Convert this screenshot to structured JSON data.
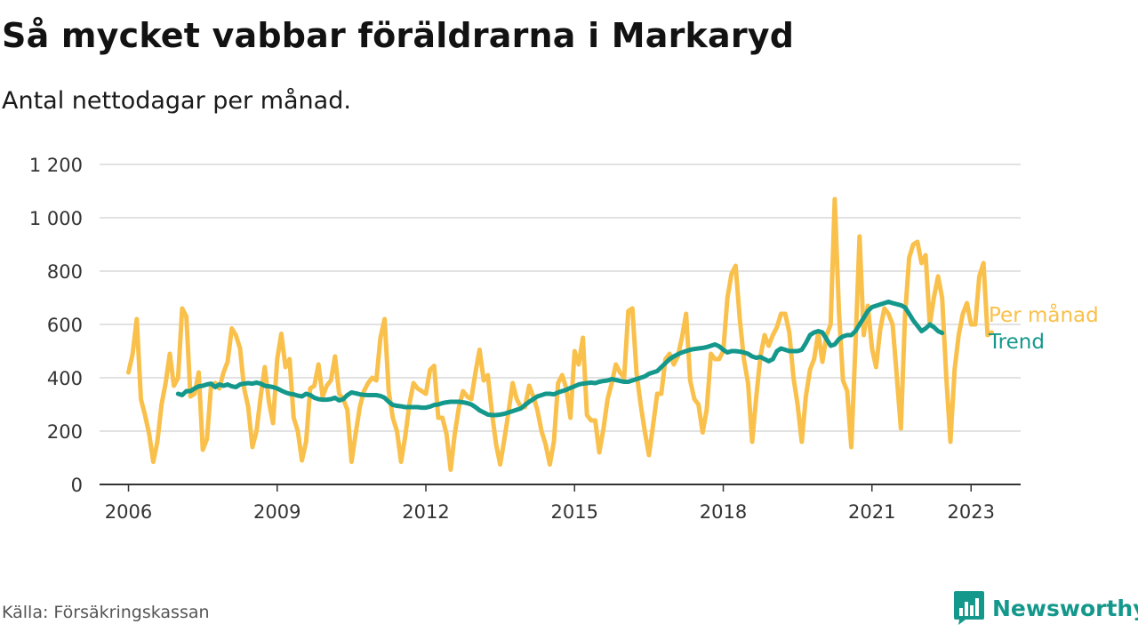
{
  "title": "Så mycket vabbar föräldrarna i Markaryd",
  "subtitle": "Antal nettodagar per månad.",
  "source": "Källa: Försäkringskassan",
  "brand": {
    "name": "Newsworthy",
    "icon": "bar-chart-speech-bubble-icon"
  },
  "colors": {
    "per_month": "#f9c04b",
    "trend": "#14988c",
    "grid": "#d9d9d9",
    "axis": "#333333",
    "brand": "#14988c"
  },
  "chart_data": {
    "type": "line",
    "title": "Så mycket vabbar föräldrarna i Markaryd",
    "subtitle": "Antal nettodagar per månad.",
    "xlabel": "",
    "ylabel": "",
    "ylim": [
      0,
      1200
    ],
    "xlim": [
      "2005-06",
      "2024-01"
    ],
    "yticks": [
      0,
      200,
      400,
      600,
      800,
      1000,
      1200
    ],
    "ytick_labels": [
      "0",
      "200",
      "400",
      "600",
      "800",
      "1 000",
      "1 200"
    ],
    "xticks": [
      "2006-01",
      "2009-01",
      "2012-01",
      "2015-01",
      "2018-01",
      "2021-01",
      "2023-01"
    ],
    "xtick_labels": [
      "2006",
      "2009",
      "2012",
      "2015",
      "2018",
      "2021",
      "2023"
    ],
    "grid": true,
    "legend": "direct labels at right end of lines",
    "series": [
      {
        "name": "Per månad",
        "start": "2006-01",
        "values": [
          420,
          490,
          620,
          320,
          260,
          190,
          85,
          160,
          300,
          380,
          490,
          370,
          400,
          660,
          630,
          330,
          340,
          420,
          130,
          170,
          370,
          380,
          360,
          420,
          460,
          585,
          560,
          510,
          360,
          290,
          140,
          200,
          330,
          440,
          310,
          230,
          470,
          565,
          440,
          470,
          250,
          200,
          90,
          160,
          360,
          370,
          450,
          330,
          370,
          390,
          480,
          340,
          320,
          280,
          85,
          190,
          290,
          350,
          380,
          400,
          390,
          550,
          620,
          350,
          250,
          200,
          85,
          180,
          300,
          380,
          360,
          350,
          340,
          430,
          445,
          250,
          250,
          190,
          55,
          190,
          290,
          350,
          330,
          320,
          420,
          505,
          390,
          410,
          270,
          150,
          75,
          170,
          270,
          380,
          320,
          290,
          290,
          370,
          330,
          280,
          200,
          150,
          75,
          160,
          380,
          410,
          360,
          250,
          500,
          450,
          550,
          260,
          240,
          240,
          120,
          210,
          320,
          380,
          450,
          420,
          400,
          650,
          660,
          420,
          300,
          200,
          110,
          220,
          340,
          340,
          470,
          490,
          450,
          480,
          550,
          640,
          390,
          320,
          300,
          195,
          280,
          490,
          470,
          470,
          500,
          700,
          790,
          820,
          620,
          470,
          380,
          160,
          330,
          480,
          560,
          520,
          560,
          590,
          640,
          640,
          570,
          400,
          300,
          160,
          330,
          430,
          470,
          570,
          460,
          560,
          600,
          1070,
          650,
          390,
          350,
          140,
          520,
          930,
          560,
          670,
          510,
          440,
          580,
          660,
          640,
          600,
          410,
          210,
          630,
          850,
          900,
          910,
          830,
          860,
          600,
          700,
          780,
          700,
          400,
          160,
          430,
          560,
          640,
          680,
          600,
          600,
          780,
          830,
          560,
          570
        ]
      },
      {
        "name": "Trend",
        "start": "2007-01",
        "values": [
          340,
          335,
          350,
          350,
          360,
          368,
          370,
          375,
          378,
          365,
          375,
          370,
          375,
          368,
          365,
          375,
          378,
          380,
          378,
          382,
          378,
          370,
          368,
          365,
          360,
          352,
          345,
          340,
          338,
          333,
          330,
          340,
          335,
          325,
          320,
          318,
          318,
          320,
          325,
          315,
          320,
          335,
          345,
          342,
          338,
          336,
          335,
          335,
          335,
          332,
          325,
          310,
          298,
          295,
          293,
          290,
          290,
          290,
          290,
          288,
          288,
          292,
          298,
          300,
          305,
          308,
          310,
          310,
          310,
          308,
          305,
          300,
          290,
          278,
          270,
          262,
          260,
          260,
          262,
          265,
          270,
          275,
          280,
          285,
          298,
          310,
          320,
          330,
          335,
          340,
          340,
          338,
          345,
          350,
          355,
          362,
          368,
          375,
          378,
          380,
          382,
          380,
          385,
          388,
          390,
          395,
          392,
          388,
          385,
          385,
          390,
          395,
          400,
          405,
          415,
          420,
          425,
          440,
          455,
          470,
          480,
          488,
          495,
          500,
          505,
          508,
          510,
          512,
          515,
          520,
          525,
          518,
          505,
          495,
          500,
          500,
          498,
          495,
          490,
          480,
          475,
          478,
          470,
          462,
          470,
          500,
          510,
          505,
          500,
          500,
          500,
          505,
          530,
          560,
          570,
          575,
          570,
          545,
          520,
          525,
          545,
          555,
          560,
          560,
          575,
          600,
          625,
          650,
          665,
          670,
          675,
          680,
          685,
          680,
          676,
          672,
          664,
          640,
          615,
          595,
          575,
          585,
          600,
          590,
          575,
          568
        ]
      }
    ]
  }
}
